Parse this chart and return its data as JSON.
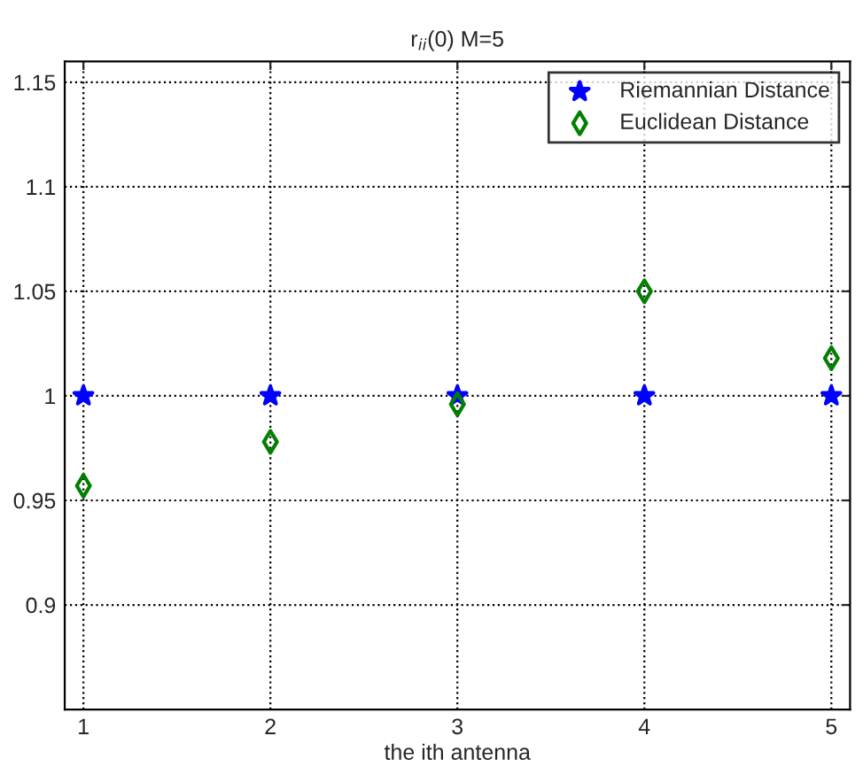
{
  "chart_data": {
    "type": "scatter",
    "title": "r$_{ii}$(0) M=5",
    "xlabel": "the ith antenna",
    "x": [
      1,
      2,
      3,
      4,
      5
    ],
    "series": [
      {
        "name": "Riemannian Distance",
        "color": "#0000ff",
        "marker": "star",
        "values": [
          1,
          1,
          1,
          1,
          1
        ]
      },
      {
        "name": "Euclidean Distance",
        "color": "#008000",
        "marker": "diamond",
        "values": [
          0.957,
          0.978,
          0.996,
          1.05,
          1.018
        ]
      }
    ],
    "xlim": [
      0.9,
      5.1
    ],
    "xticks": [
      1,
      2,
      3,
      4,
      5
    ],
    "ylim": [
      0.85,
      1.16
    ],
    "yticks": [
      0.9,
      0.95,
      1,
      1.05,
      1.1,
      1.15
    ],
    "grid": true,
    "legend": "top right"
  }
}
